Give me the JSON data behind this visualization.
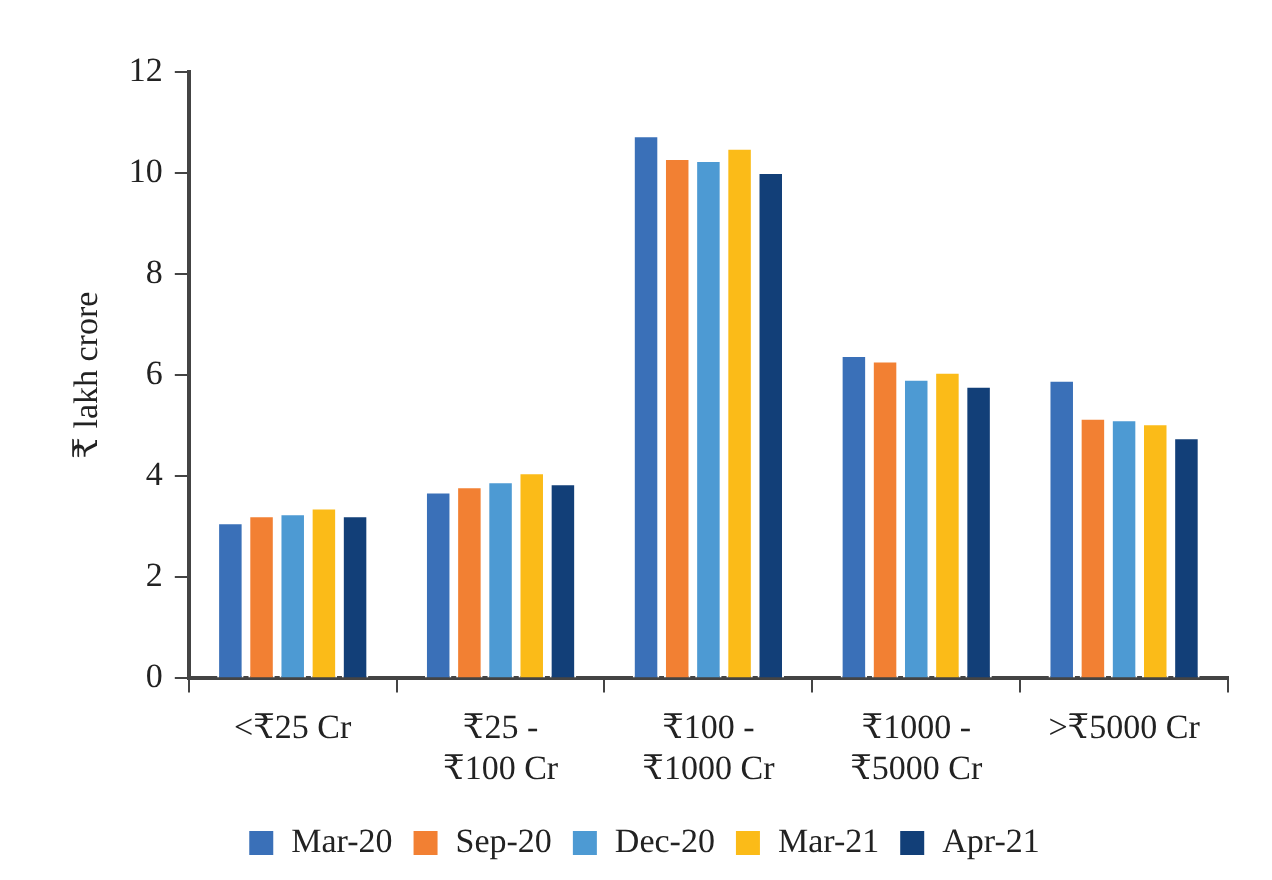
{
  "chart_data": {
    "type": "bar",
    "ylabel": "₹ lakh crore",
    "categories": [
      "<₹25 Cr",
      "₹25 -\n₹100 Cr",
      "₹100 -\n₹1000 Cr",
      "₹1000 -\n₹5000 Cr",
      ">₹5000 Cr"
    ],
    "series": [
      {
        "name": "Mar-20",
        "color": "#3a70b8",
        "values": [
          3.09,
          3.7,
          10.75,
          6.4,
          5.91
        ]
      },
      {
        "name": "Sep-20",
        "color": "#f28033",
        "values": [
          3.23,
          3.8,
          10.3,
          6.29,
          5.16
        ]
      },
      {
        "name": "Dec-20",
        "color": "#4d9ad3",
        "values": [
          3.27,
          3.9,
          10.26,
          5.93,
          5.13
        ]
      },
      {
        "name": "Mar-21",
        "color": "#fbbb18",
        "values": [
          3.38,
          4.08,
          10.5,
          6.07,
          5.05
        ]
      },
      {
        "name": "Apr-21",
        "color": "#123f78",
        "values": [
          3.23,
          3.86,
          10.02,
          5.79,
          4.77
        ]
      }
    ],
    "ylim": [
      0,
      12
    ],
    "yticks": [
      0,
      2,
      4,
      6,
      8,
      10,
      12
    ],
    "grid": false,
    "legend": "bottom"
  }
}
